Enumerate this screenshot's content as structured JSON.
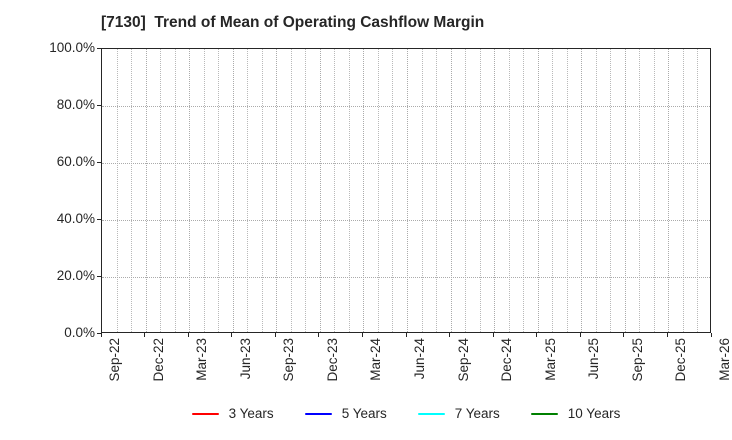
{
  "chart_data": {
    "type": "line",
    "title": "[7130]  Trend of Mean of Operating Cashflow Margin",
    "xlabel": "",
    "ylabel": "",
    "x_tick_labels": [
      "Sep-22",
      "Dec-22",
      "Mar-23",
      "Jun-23",
      "Sep-23",
      "Dec-23",
      "Mar-24",
      "Jun-24",
      "Sep-24",
      "Dec-24",
      "Mar-25",
      "Jun-25",
      "Sep-25",
      "Dec-25",
      "Mar-26"
    ],
    "y_tick_labels": [
      "0.0%",
      "20.0%",
      "40.0%",
      "60.0%",
      "80.0%",
      "100.0%"
    ],
    "y_tick_values": [
      0,
      20,
      40,
      60,
      80,
      100
    ],
    "ylim": [
      0,
      100
    ],
    "grid": "dotted",
    "x_minor_divisions_per_major": 3,
    "legend_position": "bottom",
    "series": [
      {
        "name": "3 Years",
        "color": "#ff0000",
        "values": []
      },
      {
        "name": "5 Years",
        "color": "#0000ff",
        "values": []
      },
      {
        "name": "7 Years",
        "color": "#00ffff",
        "values": []
      },
      {
        "name": "10 Years",
        "color": "#008000",
        "values": []
      }
    ]
  },
  "colors": {
    "background": "#ffffff",
    "text": "#262626",
    "grid_minor": "#b9b9b9",
    "grid_major": "#ababab",
    "axis_border": "#262626"
  }
}
